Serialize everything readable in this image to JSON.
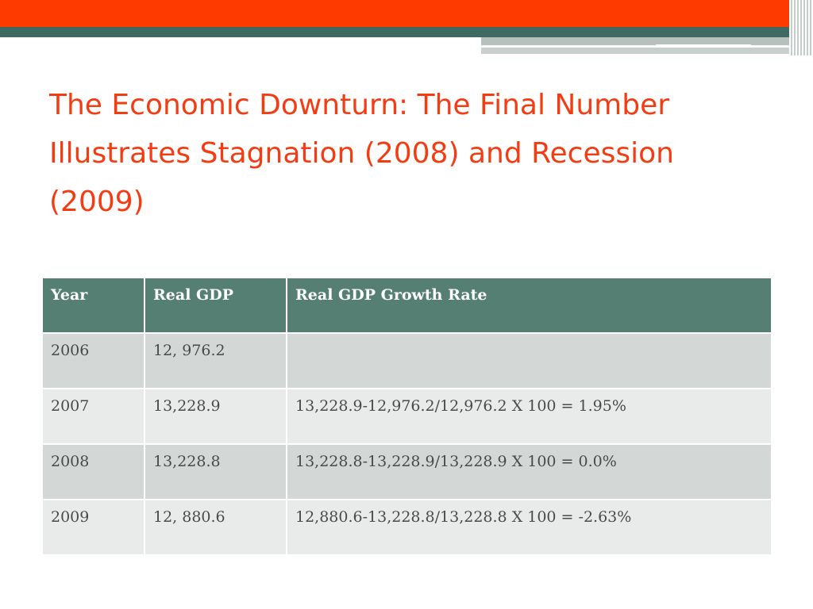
{
  "title": "The Economic Downturn: The Final Number Illustrates Stagnation (2008) and Recession (2009)",
  "colors": {
    "accent_orange": "#fe3a00",
    "accent_teal": "#3f6a62",
    "title_text": "#f23d14",
    "header_fill": "#567f74"
  },
  "table": {
    "headers": [
      "Year",
      "Real GDP",
      "Real GDP Growth Rate"
    ],
    "rows": [
      [
        "2006",
        "12, 976.2",
        ""
      ],
      [
        "2007",
        "13,228.9",
        "13,228.9-12,976.2/12,976.2 X 100 = 1.95%"
      ],
      [
        "2008",
        "13,228.8",
        "13,228.8-13,228.9/13,228.9 X 100 = 0.0%"
      ],
      [
        "2009",
        "12, 880.6",
        "12,880.6-13,228.8/13,228.8 X 100 = -2.63%"
      ]
    ]
  }
}
